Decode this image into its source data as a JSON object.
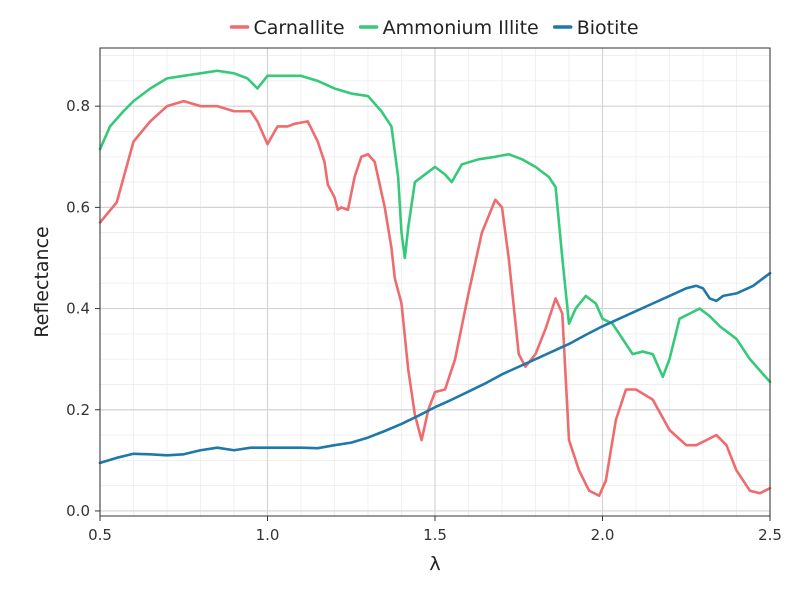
{
  "chart_data": {
    "type": "line",
    "xlabel": "λ",
    "ylabel": "Reflectance",
    "xlim": [
      0.5,
      2.5
    ],
    "ylim": [
      -0.01,
      0.915
    ],
    "xticks": [
      0.5,
      1.0,
      1.5,
      2.0,
      2.5
    ],
    "xtick_labels": [
      "0.5",
      "1.0",
      "1.5",
      "2.0",
      "2.5"
    ],
    "yticks": [
      0.0,
      0.2,
      0.4,
      0.6,
      0.8
    ],
    "ytick_labels": [
      "0.0",
      "0.2",
      "0.4",
      "0.6",
      "0.8"
    ],
    "grid": true,
    "legend_position": "top",
    "series": [
      {
        "name": "Carnallite",
        "color": "#EE6B6E",
        "points": [
          [
            0.5,
            0.57
          ],
          [
            0.55,
            0.61
          ],
          [
            0.6,
            0.73
          ],
          [
            0.65,
            0.77
          ],
          [
            0.7,
            0.8
          ],
          [
            0.75,
            0.81
          ],
          [
            0.8,
            0.8
          ],
          [
            0.85,
            0.8
          ],
          [
            0.9,
            0.79
          ],
          [
            0.95,
            0.79
          ],
          [
            0.97,
            0.77
          ],
          [
            1.0,
            0.725
          ],
          [
            1.03,
            0.76
          ],
          [
            1.06,
            0.76
          ],
          [
            1.08,
            0.765
          ],
          [
            1.12,
            0.77
          ],
          [
            1.15,
            0.73
          ],
          [
            1.17,
            0.69
          ],
          [
            1.18,
            0.645
          ],
          [
            1.2,
            0.62
          ],
          [
            1.21,
            0.595
          ],
          [
            1.22,
            0.6
          ],
          [
            1.24,
            0.595
          ],
          [
            1.26,
            0.66
          ],
          [
            1.28,
            0.7
          ],
          [
            1.3,
            0.705
          ],
          [
            1.32,
            0.69
          ],
          [
            1.35,
            0.6
          ],
          [
            1.37,
            0.52
          ],
          [
            1.38,
            0.46
          ],
          [
            1.4,
            0.41
          ],
          [
            1.42,
            0.28
          ],
          [
            1.44,
            0.19
          ],
          [
            1.46,
            0.14
          ],
          [
            1.48,
            0.2
          ],
          [
            1.5,
            0.235
          ],
          [
            1.53,
            0.24
          ],
          [
            1.56,
            0.3
          ],
          [
            1.6,
            0.43
          ],
          [
            1.64,
            0.55
          ],
          [
            1.68,
            0.615
          ],
          [
            1.7,
            0.6
          ],
          [
            1.72,
            0.5
          ],
          [
            1.75,
            0.31
          ],
          [
            1.77,
            0.285
          ],
          [
            1.8,
            0.31
          ],
          [
            1.83,
            0.36
          ],
          [
            1.86,
            0.42
          ],
          [
            1.88,
            0.39
          ],
          [
            1.9,
            0.14
          ],
          [
            1.93,
            0.08
          ],
          [
            1.96,
            0.04
          ],
          [
            1.99,
            0.03
          ],
          [
            2.01,
            0.06
          ],
          [
            2.04,
            0.18
          ],
          [
            2.07,
            0.24
          ],
          [
            2.1,
            0.24
          ],
          [
            2.15,
            0.22
          ],
          [
            2.2,
            0.16
          ],
          [
            2.25,
            0.13
          ],
          [
            2.28,
            0.13
          ],
          [
            2.31,
            0.14
          ],
          [
            2.34,
            0.15
          ],
          [
            2.37,
            0.13
          ],
          [
            2.4,
            0.08
          ],
          [
            2.44,
            0.04
          ],
          [
            2.47,
            0.035
          ],
          [
            2.5,
            0.045
          ]
        ]
      },
      {
        "name": "Ammonium Illite",
        "color": "#36C97A",
        "points": [
          [
            0.5,
            0.715
          ],
          [
            0.53,
            0.76
          ],
          [
            0.57,
            0.79
          ],
          [
            0.6,
            0.81
          ],
          [
            0.65,
            0.835
          ],
          [
            0.7,
            0.855
          ],
          [
            0.75,
            0.86
          ],
          [
            0.8,
            0.865
          ],
          [
            0.85,
            0.87
          ],
          [
            0.9,
            0.865
          ],
          [
            0.94,
            0.855
          ],
          [
            0.97,
            0.835
          ],
          [
            1.0,
            0.86
          ],
          [
            1.05,
            0.86
          ],
          [
            1.1,
            0.86
          ],
          [
            1.15,
            0.85
          ],
          [
            1.2,
            0.835
          ],
          [
            1.25,
            0.825
          ],
          [
            1.3,
            0.82
          ],
          [
            1.34,
            0.79
          ],
          [
            1.37,
            0.76
          ],
          [
            1.39,
            0.66
          ],
          [
            1.4,
            0.55
          ],
          [
            1.41,
            0.5
          ],
          [
            1.42,
            0.56
          ],
          [
            1.44,
            0.65
          ],
          [
            1.48,
            0.67
          ],
          [
            1.5,
            0.68
          ],
          [
            1.53,
            0.665
          ],
          [
            1.55,
            0.65
          ],
          [
            1.58,
            0.685
          ],
          [
            1.63,
            0.695
          ],
          [
            1.68,
            0.7
          ],
          [
            1.72,
            0.705
          ],
          [
            1.76,
            0.695
          ],
          [
            1.8,
            0.68
          ],
          [
            1.84,
            0.66
          ],
          [
            1.86,
            0.64
          ],
          [
            1.88,
            0.5
          ],
          [
            1.9,
            0.37
          ],
          [
            1.92,
            0.4
          ],
          [
            1.95,
            0.425
          ],
          [
            1.98,
            0.41
          ],
          [
            2.0,
            0.38
          ],
          [
            2.03,
            0.37
          ],
          [
            2.06,
            0.34
          ],
          [
            2.09,
            0.31
          ],
          [
            2.12,
            0.315
          ],
          [
            2.15,
            0.31
          ],
          [
            2.18,
            0.265
          ],
          [
            2.2,
            0.3
          ],
          [
            2.23,
            0.38
          ],
          [
            2.26,
            0.39
          ],
          [
            2.29,
            0.4
          ],
          [
            2.32,
            0.385
          ],
          [
            2.35,
            0.365
          ],
          [
            2.4,
            0.34
          ],
          [
            2.44,
            0.3
          ],
          [
            2.48,
            0.27
          ],
          [
            2.5,
            0.255
          ]
        ]
      },
      {
        "name": "Biotite",
        "color": "#1F78A8",
        "points": [
          [
            0.5,
            0.095
          ],
          [
            0.55,
            0.105
          ],
          [
            0.6,
            0.113
          ],
          [
            0.65,
            0.112
          ],
          [
            0.7,
            0.11
          ],
          [
            0.75,
            0.112
          ],
          [
            0.8,
            0.12
          ],
          [
            0.85,
            0.125
          ],
          [
            0.9,
            0.12
          ],
          [
            0.95,
            0.125
          ],
          [
            1.0,
            0.125
          ],
          [
            1.05,
            0.125
          ],
          [
            1.1,
            0.125
          ],
          [
            1.15,
            0.124
          ],
          [
            1.2,
            0.13
          ],
          [
            1.25,
            0.135
          ],
          [
            1.3,
            0.145
          ],
          [
            1.35,
            0.158
          ],
          [
            1.4,
            0.172
          ],
          [
            1.45,
            0.188
          ],
          [
            1.5,
            0.205
          ],
          [
            1.55,
            0.22
          ],
          [
            1.6,
            0.236
          ],
          [
            1.65,
            0.252
          ],
          [
            1.7,
            0.27
          ],
          [
            1.75,
            0.285
          ],
          [
            1.8,
            0.3
          ],
          [
            1.85,
            0.315
          ],
          [
            1.9,
            0.33
          ],
          [
            1.95,
            0.348
          ],
          [
            2.0,
            0.365
          ],
          [
            2.05,
            0.38
          ],
          [
            2.1,
            0.395
          ],
          [
            2.15,
            0.41
          ],
          [
            2.2,
            0.425
          ],
          [
            2.25,
            0.44
          ],
          [
            2.28,
            0.445
          ],
          [
            2.3,
            0.44
          ],
          [
            2.32,
            0.42
          ],
          [
            2.34,
            0.415
          ],
          [
            2.36,
            0.425
          ],
          [
            2.4,
            0.43
          ],
          [
            2.45,
            0.445
          ],
          [
            2.5,
            0.47
          ]
        ]
      }
    ]
  }
}
